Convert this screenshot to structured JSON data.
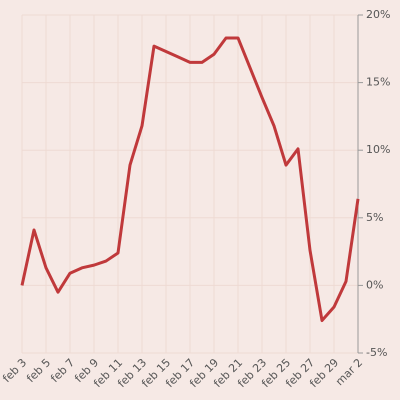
{
  "chart_data": {
    "type": "line",
    "categories": [
      "feb 3",
      null,
      "feb 5",
      null,
      "feb 7",
      null,
      "feb 9",
      null,
      "feb 11",
      null,
      "feb 13",
      null,
      "feb 15",
      null,
      "feb 17",
      null,
      "feb 19",
      null,
      "feb 21",
      null,
      "feb 23",
      null,
      "feb 25",
      null,
      "feb 27",
      null,
      "feb 29",
      null,
      "mar 2"
    ],
    "series": [
      {
        "color": "#c0393b",
        "values": [
          0,
          4.1,
          1.3,
          -0.5,
          0.9,
          1.3,
          1.5,
          1.8,
          2.4,
          8.9,
          11.8,
          17.7,
          17.3,
          16.9,
          16.5,
          16.5,
          17.1,
          18.3,
          18.3,
          16.1,
          13.9,
          11.8,
          8.9,
          10.1,
          2.6,
          -2.6,
          -1.6,
          0.3,
          6.4
        ]
      }
    ],
    "ylim": [
      -5,
      20
    ],
    "yticks": [
      {
        "value": -5,
        "label": "-5%"
      },
      {
        "value": 0,
        "label": "0%"
      },
      {
        "value": 5,
        "label": "5%"
      },
      {
        "value": 10,
        "label": "10%"
      },
      {
        "value": 15,
        "label": "15%"
      },
      {
        "value": 20,
        "label": "20%"
      }
    ],
    "grid": true
  }
}
